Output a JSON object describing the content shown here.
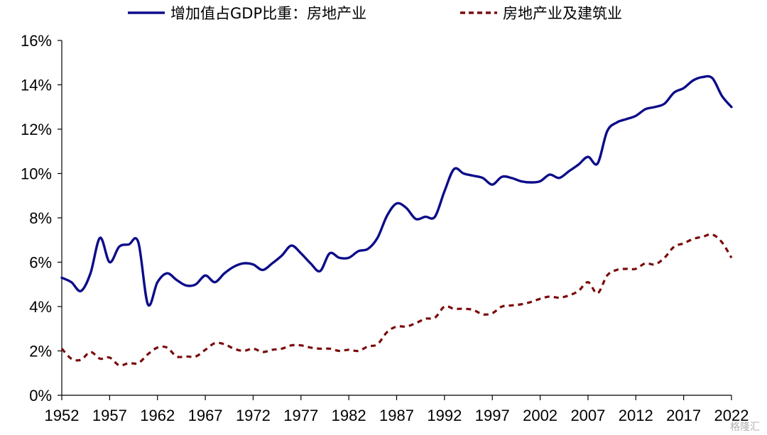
{
  "chart_data": {
    "type": "line",
    "x_range": [
      1952,
      2022
    ],
    "ylim": [
      0,
      16
    ],
    "y_ticks": [
      "0%",
      "2%",
      "4%",
      "6%",
      "8%",
      "10%",
      "12%",
      "14%",
      "16%"
    ],
    "x_ticks": [
      "1952",
      "1957",
      "1962",
      "1967",
      "1972",
      "1977",
      "1982",
      "1987",
      "1992",
      "1997",
      "2002",
      "2007",
      "2012",
      "2017",
      "2022"
    ],
    "grid": false,
    "legend_position": "top",
    "series": [
      {
        "name": "增加值占GDP比重：房地产业",
        "color": "#0c0c8a",
        "style": "solid",
        "x": [
          1952,
          1953,
          1954,
          1955,
          1956,
          1957,
          1958,
          1959,
          1960,
          1961,
          1962,
          1963,
          1964,
          1965,
          1966,
          1967,
          1968,
          1969,
          1970,
          1971,
          1972,
          1973,
          1974,
          1975,
          1976,
          1977,
          1978,
          1979,
          1980,
          1981,
          1982,
          1983,
          1984,
          1985,
          1986,
          1987,
          1988,
          1989,
          1990,
          1991,
          1992,
          1993,
          1994,
          1995,
          1996,
          1997,
          1998,
          1999,
          2000,
          2001,
          2002,
          2003,
          2004,
          2005,
          2006,
          2007,
          2008,
          2009,
          2010,
          2011,
          2012,
          2013,
          2014,
          2015,
          2016,
          2017,
          2018,
          2019,
          2020,
          2021,
          2022
        ],
        "values": [
          5.3,
          5.1,
          4.7,
          5.5,
          7.1,
          6.0,
          6.7,
          6.8,
          6.9,
          4.1,
          5.1,
          5.5,
          5.2,
          4.95,
          5.0,
          5.4,
          5.1,
          5.5,
          5.8,
          5.95,
          5.9,
          5.65,
          5.95,
          6.3,
          6.75,
          6.4,
          5.95,
          5.6,
          6.4,
          6.2,
          6.2,
          6.5,
          6.6,
          7.1,
          8.1,
          8.65,
          8.45,
          7.95,
          8.05,
          8.05,
          9.2,
          10.2,
          10.0,
          9.9,
          9.8,
          9.5,
          9.85,
          9.8,
          9.65,
          9.6,
          9.65,
          9.95,
          9.8,
          10.1,
          10.4,
          10.75,
          10.45,
          11.9,
          12.3,
          12.45,
          12.6,
          12.9,
          13.0,
          13.15,
          13.65,
          13.85,
          14.2,
          14.35,
          14.3,
          13.5,
          13.0
        ]
      },
      {
        "name": "房地产业及建筑业",
        "color": "#7a0a0a",
        "style": "dashed",
        "x": [
          1952,
          1953,
          1954,
          1955,
          1956,
          1957,
          1958,
          1959,
          1960,
          1961,
          1962,
          1963,
          1964,
          1965,
          1966,
          1967,
          1968,
          1969,
          1970,
          1971,
          1972,
          1973,
          1974,
          1975,
          1976,
          1977,
          1978,
          1979,
          1980,
          1981,
          1982,
          1983,
          1984,
          1985,
          1986,
          1987,
          1988,
          1989,
          1990,
          1991,
          1992,
          1993,
          1994,
          1995,
          1996,
          1997,
          1998,
          1999,
          2000,
          2001,
          2002,
          2003,
          2004,
          2005,
          2006,
          2007,
          2008,
          2009,
          2010,
          2011,
          2012,
          2013,
          2014,
          2015,
          2016,
          2017,
          2018,
          2019,
          2020,
          2021,
          2022
        ],
        "values": [
          2.1,
          1.65,
          1.6,
          1.95,
          1.65,
          1.7,
          1.35,
          1.45,
          1.45,
          1.85,
          2.15,
          2.15,
          1.75,
          1.75,
          1.75,
          2.05,
          2.35,
          2.3,
          2.1,
          2.0,
          2.1,
          1.95,
          2.05,
          2.1,
          2.25,
          2.25,
          2.15,
          2.1,
          2.1,
          2.0,
          2.05,
          2.0,
          2.2,
          2.3,
          2.85,
          3.1,
          3.1,
          3.25,
          3.45,
          3.5,
          4.0,
          3.9,
          3.9,
          3.85,
          3.65,
          3.7,
          4.0,
          4.05,
          4.1,
          4.2,
          4.35,
          4.45,
          4.4,
          4.5,
          4.7,
          5.1,
          4.6,
          5.4,
          5.65,
          5.7,
          5.7,
          5.95,
          5.9,
          6.2,
          6.7,
          6.85,
          7.05,
          7.15,
          7.25,
          6.9,
          6.2
        ]
      }
    ]
  },
  "watermark": "格隆汇"
}
